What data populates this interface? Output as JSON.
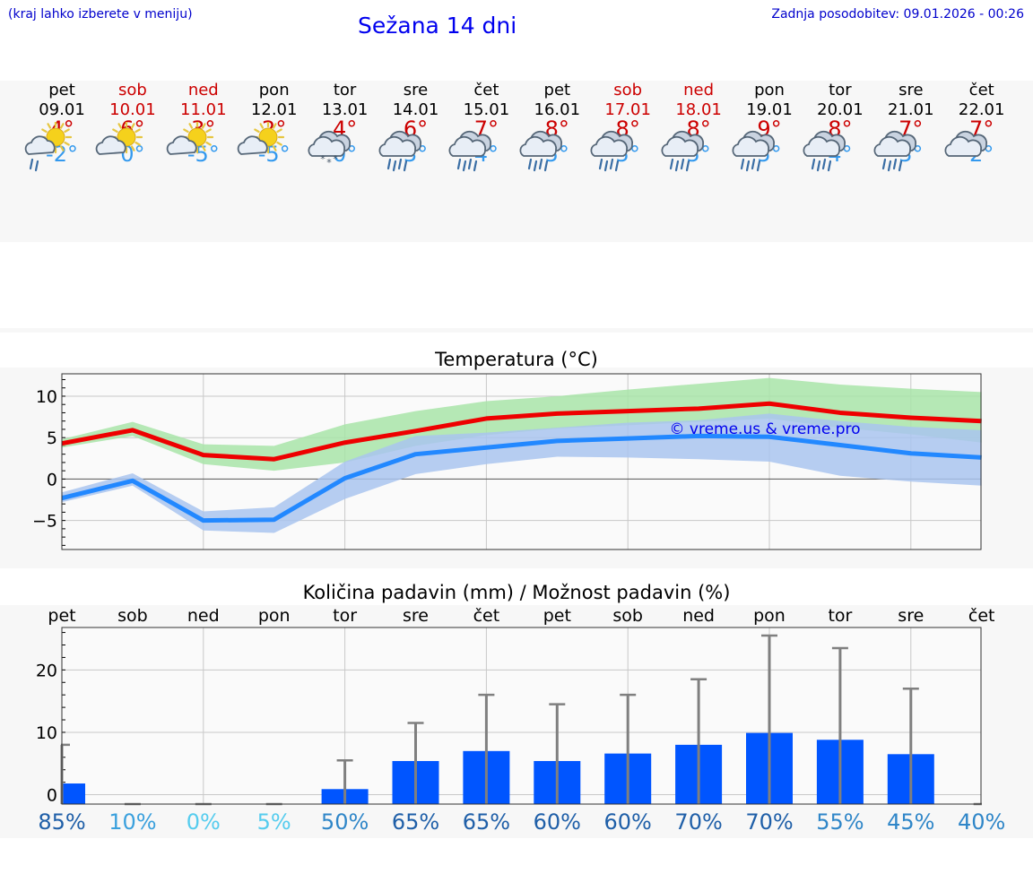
{
  "header": {
    "hint": "(kraj lahko izberete v meniju)",
    "title": "Sežana 14 dni",
    "updated": "Zadnja posodobitev: 09.01.2026 - 00:26"
  },
  "colors": {
    "weekday": "#000000",
    "weekend": "#cc0000",
    "max_temp": "#cc0000",
    "min_temp": "#3399ee",
    "max_line": "#ee0000",
    "min_line": "#2288ff",
    "max_band": "#a8e4a8",
    "min_band": "#a9c4ef",
    "bar": "#0055ff",
    "whisker": "#7f7f7f"
  },
  "days": [
    {
      "weekday": "pet",
      "date": "09.01",
      "weekend": false,
      "icon": "sun-cloud-rain-icon",
      "max": "4°",
      "min": "-2°"
    },
    {
      "weekday": "sob",
      "date": "10.01",
      "weekend": true,
      "icon": "sun-cloud-icon",
      "max": "6°",
      "min": "0°"
    },
    {
      "weekday": "ned",
      "date": "11.01",
      "weekend": true,
      "icon": "sun-cloud-icon",
      "max": "3°",
      "min": "-5°"
    },
    {
      "weekday": "pon",
      "date": "12.01",
      "weekend": false,
      "icon": "sun-cloud-icon",
      "max": "2°",
      "min": "-5°"
    },
    {
      "weekday": "tor",
      "date": "13.01",
      "weekend": false,
      "icon": "cloud-snow-icon",
      "max": "4°",
      "min": "0°"
    },
    {
      "weekday": "sre",
      "date": "14.01",
      "weekend": false,
      "icon": "cloud-rain-icon",
      "max": "6°",
      "min": "3°"
    },
    {
      "weekday": "čet",
      "date": "15.01",
      "weekend": false,
      "icon": "cloud-rain-icon",
      "max": "7°",
      "min": "4°"
    },
    {
      "weekday": "pet",
      "date": "16.01",
      "weekend": false,
      "icon": "cloud-rain-icon",
      "max": "8°",
      "min": "5°"
    },
    {
      "weekday": "sob",
      "date": "17.01",
      "weekend": true,
      "icon": "cloud-rain-icon",
      "max": "8°",
      "min": "5°"
    },
    {
      "weekday": "ned",
      "date": "18.01",
      "weekend": true,
      "icon": "cloud-rain-icon",
      "max": "8°",
      "min": "5°"
    },
    {
      "weekday": "pon",
      "date": "19.01",
      "weekend": false,
      "icon": "cloud-rain-icon",
      "max": "9°",
      "min": "5°"
    },
    {
      "weekday": "tor",
      "date": "20.01",
      "weekend": false,
      "icon": "cloud-rain-icon",
      "max": "8°",
      "min": "4°"
    },
    {
      "weekday": "sre",
      "date": "21.01",
      "weekend": false,
      "icon": "cloud-rain-icon",
      "max": "7°",
      "min": "3°"
    },
    {
      "weekday": "čet",
      "date": "22.01",
      "weekend": false,
      "icon": "cloud-icon",
      "max": "7°",
      "min": "2°"
    }
  ],
  "chart_data": [
    {
      "type": "line",
      "title": "Temperatura (°C)",
      "watermark": "© vreme.us & vreme.pro",
      "x": [
        0,
        1,
        2,
        3,
        4,
        5,
        6,
        7,
        8,
        9,
        10,
        11,
        12,
        13
      ],
      "ylim": [
        -8.5,
        12.7
      ],
      "yticks": [
        10,
        5,
        0,
        -5
      ],
      "ytick_labels": [
        "10",
        "5",
        "0",
        "−5"
      ],
      "grid": true,
      "series": [
        {
          "name": "max",
          "values": [
            4.3,
            5.9,
            2.9,
            2.4,
            4.4,
            5.8,
            7.3,
            7.9,
            8.2,
            8.5,
            9.1,
            8.0,
            7.4,
            7.0
          ],
          "band_low": [
            3.8,
            5.2,
            1.8,
            1.0,
            2.0,
            4.0,
            5.3,
            6.1,
            6.5,
            6.9,
            7.3,
            6.2,
            5.4,
            4.4
          ],
          "band_high": [
            4.8,
            6.9,
            4.2,
            4.0,
            6.6,
            8.2,
            9.4,
            10.0,
            10.8,
            11.5,
            12.2,
            11.4,
            10.9,
            10.5
          ]
        },
        {
          "name": "min",
          "values": [
            -2.3,
            -0.2,
            -5.0,
            -4.9,
            0.1,
            3.0,
            3.8,
            4.6,
            4.9,
            5.2,
            5.1,
            4.1,
            3.1,
            2.6
          ],
          "band_low": [
            -2.8,
            -0.8,
            -6.2,
            -6.5,
            -2.4,
            0.6,
            1.8,
            2.7,
            2.6,
            2.4,
            2.1,
            0.4,
            -0.3,
            -0.8
          ],
          "band_high": [
            -1.6,
            0.7,
            -3.9,
            -3.4,
            2.1,
            5.2,
            5.6,
            6.2,
            6.8,
            7.1,
            7.9,
            7.0,
            6.3,
            5.9
          ]
        }
      ]
    },
    {
      "type": "bar",
      "title": "Količina padavin (mm) / Možnost padavin (%)",
      "categories": [
        "pet",
        "sob",
        "ned",
        "pon",
        "tor",
        "sre",
        "čet",
        "pet",
        "sob",
        "ned",
        "pon",
        "tor",
        "sre",
        "čet"
      ],
      "values": [
        1.8,
        0,
        0,
        0,
        0.9,
        5.4,
        7.0,
        5.4,
        6.6,
        8.0,
        9.9,
        8.8,
        6.5,
        0
      ],
      "upper": [
        8.0,
        0,
        0,
        0,
        5.5,
        11.5,
        16.0,
        14.5,
        16.0,
        18.5,
        25.5,
        23.5,
        17.0,
        0
      ],
      "ylim": [
        -1.5,
        26.8
      ],
      "yticks": [
        20,
        10,
        0
      ],
      "ytick_labels": [
        "20",
        "10",
        "0"
      ],
      "probability": [
        "85%",
        "10%",
        "0%",
        "5%",
        "50%",
        "65%",
        "65%",
        "60%",
        "60%",
        "70%",
        "70%",
        "55%",
        "45%",
        "40%"
      ],
      "probability_values": [
        85,
        10,
        0,
        5,
        50,
        65,
        65,
        60,
        60,
        70,
        70,
        55,
        45,
        40
      ],
      "grid": true
    }
  ]
}
